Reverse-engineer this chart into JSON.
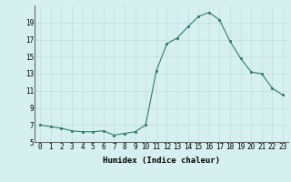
{
  "x": [
    0,
    1,
    2,
    3,
    4,
    5,
    6,
    7,
    8,
    9,
    10,
    11,
    12,
    13,
    14,
    15,
    16,
    17,
    18,
    19,
    20,
    21,
    22,
    23
  ],
  "y": [
    7.0,
    6.8,
    6.6,
    6.3,
    6.2,
    6.2,
    6.3,
    5.8,
    6.0,
    6.2,
    7.0,
    13.3,
    16.5,
    17.2,
    18.5,
    19.7,
    20.2,
    19.3,
    16.8,
    14.8,
    13.2,
    13.0,
    11.3,
    10.5
  ],
  "xlabel": "Humidex (Indice chaleur)",
  "xlim": [
    -0.5,
    23.5
  ],
  "ylim": [
    5,
    21
  ],
  "yticks": [
    5,
    7,
    9,
    11,
    13,
    15,
    17,
    19
  ],
  "xtick_labels": [
    "0",
    "1",
    "2",
    "3",
    "4",
    "5",
    "6",
    "7",
    "8",
    "9",
    "10",
    "11",
    "12",
    "13",
    "14",
    "15",
    "16",
    "17",
    "18",
    "19",
    "20",
    "21",
    "22",
    "23"
  ],
  "line_color": "#2e7d6e",
  "marker_color": "#2e7d6e",
  "bg_color": "#d6f0f0",
  "grid_color": "#c0dede",
  "label_fontsize": 6.5,
  "tick_fontsize": 5.5
}
